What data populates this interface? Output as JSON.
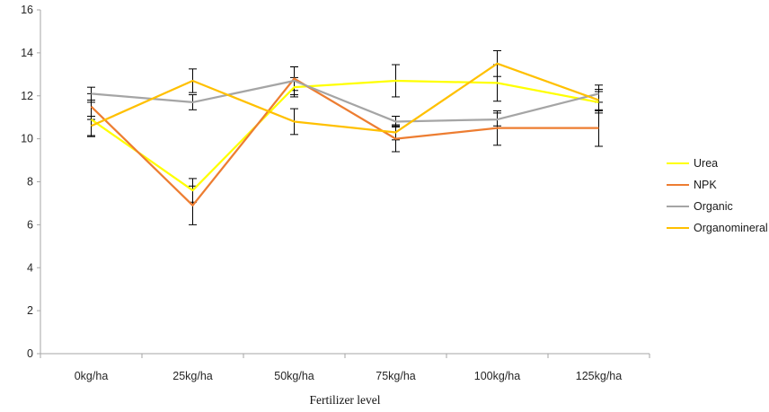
{
  "chart_data": {
    "type": "line",
    "title": "",
    "xlabel": "Fertilizer level",
    "ylabel": "",
    "categories": [
      "0kg/ha",
      "25kg/ha",
      "50kg/ha",
      "75kg/ha",
      "100kg/ha",
      "125kg/ha"
    ],
    "series": [
      {
        "name": "Urea",
        "color": "#FFFF00",
        "values": [
          10.9,
          7.6,
          12.4,
          12.7,
          12.6,
          11.7
        ],
        "errors": [
          0.8,
          0.55,
          0.45,
          0.75,
          0.85,
          0.5
        ]
      },
      {
        "name": "NPK",
        "color": "#ED7D31",
        "values": [
          11.5,
          6.9,
          12.8,
          10.0,
          10.5,
          10.5
        ],
        "errors": [
          0.6,
          0.9,
          0.55,
          0.6,
          0.8,
          0.85
        ]
      },
      {
        "name": "Organic",
        "color": "#A5A5A5",
        "values": [
          12.1,
          11.7,
          12.7,
          10.8,
          10.9,
          12.1
        ],
        "errors": [
          0.3,
          0.35,
          0.65,
          0.25,
          0.3,
          0.4
        ]
      },
      {
        "name": "Organomineral",
        "color": "#FFC000",
        "values": [
          10.6,
          12.7,
          10.8,
          10.3,
          13.5,
          11.8
        ],
        "errors": [
          0.45,
          0.55,
          0.6,
          0.35,
          0.6,
          0.5
        ]
      }
    ],
    "ylim": [
      0,
      16
    ],
    "yticks": [
      0,
      2,
      4,
      6,
      8,
      10,
      12,
      14,
      16
    ],
    "grid": false,
    "error_bars": true,
    "legend_position": "right",
    "colors": {
      "axis": "#A6A6A6",
      "tick_text": "#262626",
      "error_bar": "#000000",
      "background": "#FFFFFF"
    }
  }
}
